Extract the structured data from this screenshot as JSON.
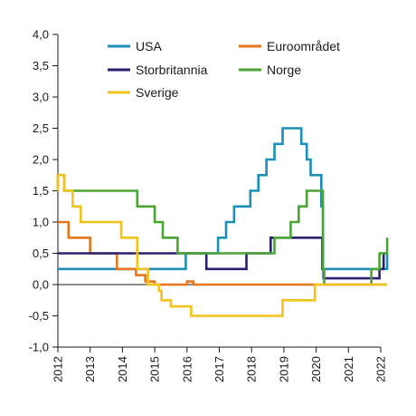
{
  "chart_data": {
    "type": "line",
    "title": "",
    "xlabel": "",
    "ylabel": "",
    "xlim": [
      2012,
      2022
    ],
    "ylim": [
      -1.0,
      4.0
    ],
    "x_ticks": [
      "2012",
      "2013",
      "2014",
      "2015",
      "2016",
      "2017",
      "2018",
      "2019",
      "2020",
      "2021",
      "2022"
    ],
    "y_ticks": [
      "-1,0",
      "-0,5",
      "0,0",
      "0,5",
      "1,0",
      "1,5",
      "2,0",
      "2,5",
      "3,0",
      "3,5",
      "4,0"
    ],
    "grid": false,
    "legend_position": "top",
    "zero_line": true,
    "series": [
      {
        "name": "USA",
        "color": "#1b8fb8",
        "points": [
          [
            2012.0,
            0.25
          ],
          [
            2015.96,
            0.25
          ],
          [
            2015.96,
            0.5
          ],
          [
            2016.96,
            0.5
          ],
          [
            2016.96,
            0.75
          ],
          [
            2017.21,
            0.75
          ],
          [
            2017.21,
            1.0
          ],
          [
            2017.46,
            1.0
          ],
          [
            2017.46,
            1.25
          ],
          [
            2017.96,
            1.25
          ],
          [
            2017.96,
            1.5
          ],
          [
            2018.21,
            1.5
          ],
          [
            2018.21,
            1.75
          ],
          [
            2018.46,
            1.75
          ],
          [
            2018.46,
            2.0
          ],
          [
            2018.71,
            2.0
          ],
          [
            2018.71,
            2.25
          ],
          [
            2018.96,
            2.25
          ],
          [
            2018.96,
            2.5
          ],
          [
            2019.54,
            2.5
          ],
          [
            2019.54,
            2.25
          ],
          [
            2019.71,
            2.25
          ],
          [
            2019.71,
            2.0
          ],
          [
            2019.83,
            2.0
          ],
          [
            2019.83,
            1.75
          ],
          [
            2020.16,
            1.75
          ],
          [
            2020.16,
            1.25
          ],
          [
            2020.21,
            1.25
          ],
          [
            2020.21,
            0.25
          ],
          [
            2022.2,
            0.25
          ],
          [
            2022.2,
            0.5
          ]
        ]
      },
      {
        "name": "Euroområdet",
        "color": "#e8761c",
        "points": [
          [
            2012.0,
            1.0
          ],
          [
            2012.33,
            1.0
          ],
          [
            2012.33,
            0.75
          ],
          [
            2013.0,
            0.75
          ],
          [
            2013.0,
            0.5
          ],
          [
            2013.83,
            0.5
          ],
          [
            2013.83,
            0.25
          ],
          [
            2014.42,
            0.25
          ],
          [
            2014.42,
            0.15
          ],
          [
            2014.71,
            0.15
          ],
          [
            2014.71,
            0.05
          ],
          [
            2015.0,
            0.05
          ],
          [
            2015.0,
            0.0
          ],
          [
            2016.0,
            0.0
          ],
          [
            2016.0,
            0.05
          ],
          [
            2016.2,
            0.05
          ],
          [
            2016.2,
            0.0
          ],
          [
            2022.2,
            0.0
          ]
        ]
      },
      {
        "name": "Storbritannia",
        "color": "#2a2070",
        "points": [
          [
            2012.0,
            0.5
          ],
          [
            2016.6,
            0.5
          ],
          [
            2016.6,
            0.25
          ],
          [
            2017.84,
            0.25
          ],
          [
            2017.84,
            0.5
          ],
          [
            2018.59,
            0.5
          ],
          [
            2018.59,
            0.75
          ],
          [
            2020.19,
            0.75
          ],
          [
            2020.19,
            0.25
          ],
          [
            2020.23,
            0.25
          ],
          [
            2020.23,
            0.1
          ],
          [
            2021.96,
            0.1
          ],
          [
            2021.96,
            0.25
          ],
          [
            2022.09,
            0.25
          ],
          [
            2022.09,
            0.5
          ],
          [
            2022.2,
            0.5
          ]
        ]
      },
      {
        "name": "Norge",
        "color": "#4aa535",
        "points": [
          [
            2012.0,
            1.5
          ],
          [
            2012.0,
            1.75
          ],
          [
            2012.2,
            1.75
          ],
          [
            2012.2,
            1.5
          ],
          [
            2014.46,
            1.5
          ],
          [
            2014.46,
            1.25
          ],
          [
            2015.0,
            1.25
          ],
          [
            2015.0,
            1.0
          ],
          [
            2015.25,
            1.0
          ],
          [
            2015.25,
            0.75
          ],
          [
            2015.71,
            0.75
          ],
          [
            2015.71,
            0.5
          ],
          [
            2018.71,
            0.5
          ],
          [
            2018.71,
            0.75
          ],
          [
            2019.21,
            0.75
          ],
          [
            2019.21,
            1.0
          ],
          [
            2019.46,
            1.0
          ],
          [
            2019.46,
            1.25
          ],
          [
            2019.71,
            1.25
          ],
          [
            2019.71,
            1.5
          ],
          [
            2020.21,
            1.5
          ],
          [
            2020.21,
            0.25
          ],
          [
            2020.25,
            0.25
          ],
          [
            2020.25,
            0.0
          ],
          [
            2021.71,
            0.0
          ],
          [
            2021.71,
            0.25
          ],
          [
            2021.96,
            0.25
          ],
          [
            2021.96,
            0.5
          ],
          [
            2022.2,
            0.5
          ],
          [
            2022.2,
            0.75
          ]
        ]
      },
      {
        "name": "Sverige",
        "color": "#f2c318",
        "points": [
          [
            2012.0,
            1.5
          ],
          [
            2012.0,
            1.75
          ],
          [
            2012.2,
            1.75
          ],
          [
            2012.2,
            1.5
          ],
          [
            2012.46,
            1.5
          ],
          [
            2012.46,
            1.25
          ],
          [
            2012.71,
            1.25
          ],
          [
            2012.71,
            1.0
          ],
          [
            2013.96,
            1.0
          ],
          [
            2013.96,
            0.75
          ],
          [
            2014.46,
            0.75
          ],
          [
            2014.46,
            0.25
          ],
          [
            2014.79,
            0.25
          ],
          [
            2014.79,
            0.0
          ],
          [
            2015.13,
            0.0
          ],
          [
            2015.13,
            -0.1
          ],
          [
            2015.21,
            -0.1
          ],
          [
            2015.21,
            -0.25
          ],
          [
            2015.5,
            -0.25
          ],
          [
            2015.5,
            -0.35
          ],
          [
            2016.13,
            -0.35
          ],
          [
            2016.13,
            -0.5
          ],
          [
            2018.96,
            -0.5
          ],
          [
            2018.96,
            -0.25
          ],
          [
            2019.96,
            -0.25
          ],
          [
            2019.96,
            0.0
          ],
          [
            2022.2,
            0.0
          ]
        ]
      }
    ]
  }
}
